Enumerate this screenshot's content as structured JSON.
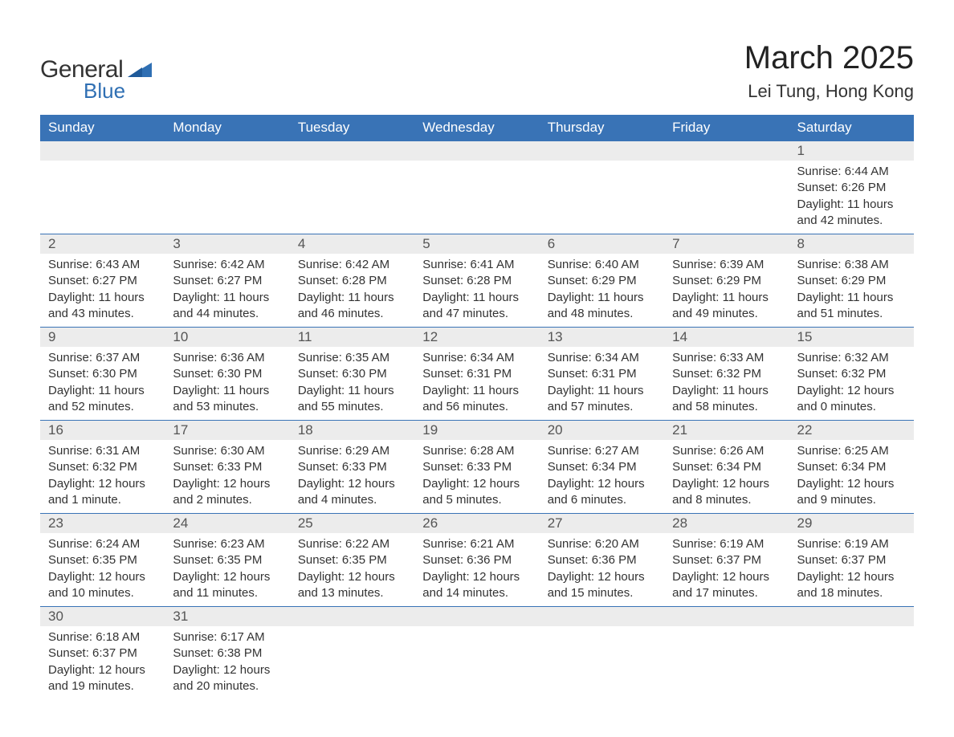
{
  "logo": {
    "line1": "General",
    "line2": "Blue"
  },
  "title": "March 2025",
  "location": "Lei Tung, Hong Kong",
  "colors": {
    "header_bg": "#3973b6",
    "header_text": "#ffffff",
    "daynum_bg": "#ececec",
    "body_text": "#333333",
    "divider": "#3973b6",
    "logo_accent": "#2f6fb3",
    "page_bg": "#ffffff"
  },
  "typography": {
    "title_fontsize_pt": 30,
    "location_fontsize_pt": 17,
    "header_fontsize_pt": 13,
    "cell_fontsize_pt": 11
  },
  "day_headers": [
    "Sunday",
    "Monday",
    "Tuesday",
    "Wednesday",
    "Thursday",
    "Friday",
    "Saturday"
  ],
  "weeks": [
    {
      "nums": [
        "",
        "",
        "",
        "",
        "",
        "",
        "1"
      ],
      "cells": [
        "",
        "",
        "",
        "",
        "",
        "",
        "Sunrise: 6:44 AM\nSunset: 6:26 PM\nDaylight: 11 hours and 42 minutes."
      ]
    },
    {
      "nums": [
        "2",
        "3",
        "4",
        "5",
        "6",
        "7",
        "8"
      ],
      "cells": [
        "Sunrise: 6:43 AM\nSunset: 6:27 PM\nDaylight: 11 hours and 43 minutes.",
        "Sunrise: 6:42 AM\nSunset: 6:27 PM\nDaylight: 11 hours and 44 minutes.",
        "Sunrise: 6:42 AM\nSunset: 6:28 PM\nDaylight: 11 hours and 46 minutes.",
        "Sunrise: 6:41 AM\nSunset: 6:28 PM\nDaylight: 11 hours and 47 minutes.",
        "Sunrise: 6:40 AM\nSunset: 6:29 PM\nDaylight: 11 hours and 48 minutes.",
        "Sunrise: 6:39 AM\nSunset: 6:29 PM\nDaylight: 11 hours and 49 minutes.",
        "Sunrise: 6:38 AM\nSunset: 6:29 PM\nDaylight: 11 hours and 51 minutes."
      ]
    },
    {
      "nums": [
        "9",
        "10",
        "11",
        "12",
        "13",
        "14",
        "15"
      ],
      "cells": [
        "Sunrise: 6:37 AM\nSunset: 6:30 PM\nDaylight: 11 hours and 52 minutes.",
        "Sunrise: 6:36 AM\nSunset: 6:30 PM\nDaylight: 11 hours and 53 minutes.",
        "Sunrise: 6:35 AM\nSunset: 6:30 PM\nDaylight: 11 hours and 55 minutes.",
        "Sunrise: 6:34 AM\nSunset: 6:31 PM\nDaylight: 11 hours and 56 minutes.",
        "Sunrise: 6:34 AM\nSunset: 6:31 PM\nDaylight: 11 hours and 57 minutes.",
        "Sunrise: 6:33 AM\nSunset: 6:32 PM\nDaylight: 11 hours and 58 minutes.",
        "Sunrise: 6:32 AM\nSunset: 6:32 PM\nDaylight: 12 hours and 0 minutes."
      ]
    },
    {
      "nums": [
        "16",
        "17",
        "18",
        "19",
        "20",
        "21",
        "22"
      ],
      "cells": [
        "Sunrise: 6:31 AM\nSunset: 6:32 PM\nDaylight: 12 hours and 1 minute.",
        "Sunrise: 6:30 AM\nSunset: 6:33 PM\nDaylight: 12 hours and 2 minutes.",
        "Sunrise: 6:29 AM\nSunset: 6:33 PM\nDaylight: 12 hours and 4 minutes.",
        "Sunrise: 6:28 AM\nSunset: 6:33 PM\nDaylight: 12 hours and 5 minutes.",
        "Sunrise: 6:27 AM\nSunset: 6:34 PM\nDaylight: 12 hours and 6 minutes.",
        "Sunrise: 6:26 AM\nSunset: 6:34 PM\nDaylight: 12 hours and 8 minutes.",
        "Sunrise: 6:25 AM\nSunset: 6:34 PM\nDaylight: 12 hours and 9 minutes."
      ]
    },
    {
      "nums": [
        "23",
        "24",
        "25",
        "26",
        "27",
        "28",
        "29"
      ],
      "cells": [
        "Sunrise: 6:24 AM\nSunset: 6:35 PM\nDaylight: 12 hours and 10 minutes.",
        "Sunrise: 6:23 AM\nSunset: 6:35 PM\nDaylight: 12 hours and 11 minutes.",
        "Sunrise: 6:22 AM\nSunset: 6:35 PM\nDaylight: 12 hours and 13 minutes.",
        "Sunrise: 6:21 AM\nSunset: 6:36 PM\nDaylight: 12 hours and 14 minutes.",
        "Sunrise: 6:20 AM\nSunset: 6:36 PM\nDaylight: 12 hours and 15 minutes.",
        "Sunrise: 6:19 AM\nSunset: 6:37 PM\nDaylight: 12 hours and 17 minutes.",
        "Sunrise: 6:19 AM\nSunset: 6:37 PM\nDaylight: 12 hours and 18 minutes."
      ]
    },
    {
      "nums": [
        "30",
        "31",
        "",
        "",
        "",
        "",
        ""
      ],
      "cells": [
        "Sunrise: 6:18 AM\nSunset: 6:37 PM\nDaylight: 12 hours and 19 minutes.",
        "Sunrise: 6:17 AM\nSunset: 6:38 PM\nDaylight: 12 hours and 20 minutes.",
        "",
        "",
        "",
        "",
        ""
      ]
    }
  ]
}
